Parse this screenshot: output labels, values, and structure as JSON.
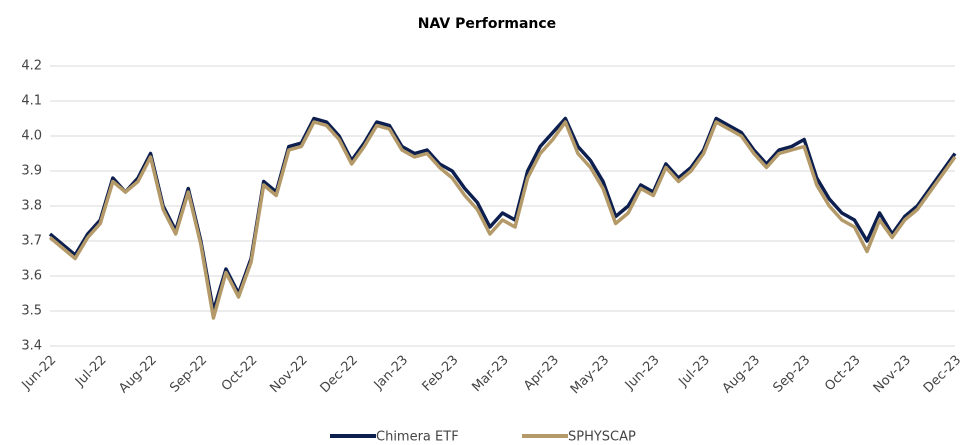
{
  "chart_data": {
    "type": "line",
    "title": "NAV Performance",
    "categories": [
      "Jun-22",
      null,
      null,
      null,
      "Jul-22",
      null,
      null,
      null,
      "Aug-22",
      null,
      null,
      null,
      "Sep-22",
      null,
      null,
      null,
      "Oct-22",
      null,
      null,
      null,
      "Nov-22",
      null,
      null,
      null,
      "Dec-22",
      null,
      null,
      null,
      "Jan-23",
      null,
      null,
      null,
      "Feb-23",
      null,
      null,
      null,
      "Mar-23",
      null,
      null,
      null,
      "Apr-23",
      null,
      null,
      null,
      "May-23",
      null,
      null,
      null,
      "Jun-23",
      null,
      null,
      null,
      "Jul-23",
      null,
      null,
      null,
      "Aug-23",
      null,
      null,
      null,
      "Sep-23",
      null,
      null,
      null,
      "Oct-23",
      null,
      null,
      null,
      "Nov-23",
      null,
      null,
      null,
      "Dec-23"
    ],
    "series": [
      {
        "name": "Chimera ETF",
        "color": "#0d1f4f",
        "values": [
          3.72,
          3.69,
          3.66,
          3.72,
          3.76,
          3.88,
          3.84,
          3.88,
          3.95,
          3.8,
          3.73,
          3.85,
          3.7,
          3.5,
          3.62,
          3.55,
          3.65,
          3.87,
          3.84,
          3.97,
          3.98,
          4.05,
          4.04,
          4.0,
          3.93,
          3.98,
          4.04,
          4.03,
          3.97,
          3.95,
          3.96,
          3.92,
          3.9,
          3.85,
          3.81,
          3.74,
          3.78,
          3.76,
          3.9,
          3.97,
          4.01,
          4.05,
          3.97,
          3.93,
          3.87,
          3.77,
          3.8,
          3.86,
          3.84,
          3.92,
          3.88,
          3.91,
          3.96,
          4.05,
          4.03,
          4.01,
          3.96,
          3.92,
          3.96,
          3.97,
          3.99,
          3.88,
          3.82,
          3.78,
          3.76,
          3.7,
          3.78,
          3.72,
          3.77,
          3.8,
          3.85,
          3.9,
          3.95
        ]
      },
      {
        "name": "SPHYSCAP",
        "color": "#b49a68",
        "values": [
          3.71,
          3.68,
          3.65,
          3.71,
          3.75,
          3.87,
          3.84,
          3.87,
          3.94,
          3.79,
          3.72,
          3.84,
          3.69,
          3.48,
          3.61,
          3.54,
          3.64,
          3.86,
          3.83,
          3.96,
          3.97,
          4.04,
          4.03,
          3.99,
          3.92,
          3.97,
          4.03,
          4.02,
          3.96,
          3.94,
          3.95,
          3.91,
          3.88,
          3.83,
          3.79,
          3.72,
          3.76,
          3.74,
          3.88,
          3.95,
          3.99,
          4.04,
          3.95,
          3.91,
          3.85,
          3.75,
          3.78,
          3.85,
          3.83,
          3.91,
          3.87,
          3.9,
          3.95,
          4.04,
          4.02,
          4.0,
          3.95,
          3.91,
          3.95,
          3.96,
          3.97,
          3.86,
          3.8,
          3.76,
          3.74,
          3.67,
          3.76,
          3.71,
          3.76,
          3.79,
          3.84,
          3.89,
          3.94
        ]
      }
    ],
    "ylim": [
      3.4,
      4.2
    ],
    "yticks": [
      3.4,
      3.5,
      3.6,
      3.7,
      3.8,
      3.9,
      {
        "value": 4,
        "label": "4.0"
      },
      4.1,
      4.2
    ],
    "grid": true
  }
}
